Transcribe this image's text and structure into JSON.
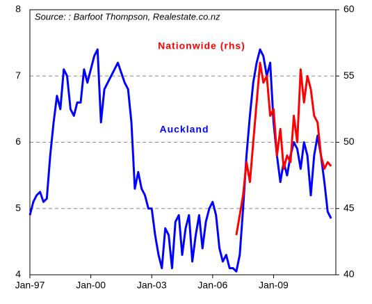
{
  "chart_data": {
    "type": "line",
    "annotations": [
      "Source: : Barfoot Thompson, Realestate.co.nz"
    ],
    "categories": [
      "Jan-97",
      null,
      null,
      null,
      null,
      null,
      null,
      null,
      null,
      null,
      null,
      null,
      null,
      null,
      null,
      null,
      null,
      null,
      "Jan-00",
      null,
      null,
      null,
      null,
      null,
      null,
      null,
      null,
      null,
      null,
      null,
      null,
      null,
      null,
      null,
      null,
      null,
      "Jan-03",
      null,
      null,
      null,
      null,
      null,
      null,
      null,
      null,
      null,
      null,
      null,
      null,
      null,
      null,
      null,
      null,
      null,
      "Jan-06",
      null,
      null,
      null,
      null,
      null,
      null,
      null,
      null,
      null,
      null,
      null,
      null,
      null,
      null,
      null,
      null,
      null,
      "Jan-09",
      null,
      null,
      null,
      null,
      null,
      null,
      null,
      null,
      null,
      null,
      null,
      null,
      null,
      null,
      null,
      null,
      null
    ],
    "series": [
      {
        "name": "Auckland",
        "color": "#0000ff",
        "values": [
          4.9,
          5.1,
          5.2,
          5.25,
          5.1,
          5.15,
          5.8,
          6.3,
          6.7,
          6.5,
          7.1,
          7.0,
          6.5,
          6.4,
          6.6,
          6.6,
          7.1,
          6.9,
          7.1,
          7.3,
          7.4,
          6.3,
          6.8,
          6.9,
          7.0,
          7.1,
          7.2,
          7.05,
          6.9,
          6.8,
          6.3,
          5.3,
          5.55,
          5.3,
          5.2,
          5.0,
          5.0,
          4.6,
          4.3,
          4.1,
          4.7,
          4.6,
          4.1,
          4.8,
          4.9,
          4.3,
          4.7,
          4.9,
          4.2,
          4.6,
          4.9,
          4.4,
          4.8,
          5.0,
          5.1,
          4.9,
          4.4,
          4.2,
          4.3,
          4.1,
          4.1,
          4.05,
          4.3,
          5.0,
          5.8,
          6.4,
          6.9,
          7.2,
          7.4,
          7.3,
          7.0,
          7.2,
          6.3,
          5.8,
          5.4,
          5.7,
          5.5,
          5.8,
          6.0,
          5.9,
          5.6,
          6.0,
          5.8,
          5.2,
          5.8,
          6.1,
          5.8,
          5.4,
          4.95,
          4.85
        ]
      },
      {
        "name": "Nationwide (rhs)",
        "color": "#ff0000",
        "axis": "y2",
        "values": [
          null,
          null,
          null,
          null,
          null,
          null,
          null,
          null,
          null,
          null,
          null,
          null,
          null,
          null,
          null,
          null,
          null,
          null,
          null,
          null,
          null,
          null,
          null,
          null,
          null,
          null,
          null,
          null,
          null,
          null,
          null,
          null,
          null,
          null,
          null,
          null,
          null,
          null,
          null,
          null,
          null,
          null,
          null,
          null,
          null,
          null,
          null,
          null,
          null,
          null,
          null,
          null,
          null,
          null,
          null,
          null,
          null,
          null,
          null,
          null,
          null,
          43,
          44.5,
          46,
          48.5,
          47,
          50,
          53,
          56,
          54.5,
          55,
          52,
          52.5,
          49,
          51,
          48,
          49,
          48.5,
          52,
          50,
          55.5,
          53,
          55,
          54,
          52,
          51.5,
          49,
          48,
          48.5,
          48.2
        ]
      }
    ],
    "ylim": [
      4,
      8
    ],
    "yticks": [
      4,
      5,
      6,
      7,
      8
    ],
    "y2lim": [
      40,
      60
    ],
    "y2ticks": [
      40,
      45,
      50,
      55,
      60
    ],
    "grid": true
  }
}
